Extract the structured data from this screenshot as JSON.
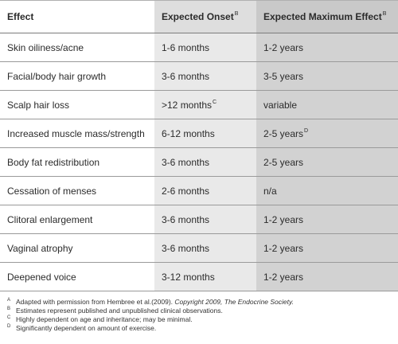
{
  "table": {
    "headers": [
      {
        "text": "Effect",
        "sup": ""
      },
      {
        "text": "Expected Onset",
        "sup": "B"
      },
      {
        "text": "Expected Maximum Effect",
        "sup": "B"
      }
    ],
    "rows": [
      {
        "effect": "Skin oiliness/acne",
        "onset": "1-6 months",
        "onset_sup": "",
        "max": "1-2 years",
        "max_sup": ""
      },
      {
        "effect": "Facial/body hair growth",
        "onset": "3-6 months",
        "onset_sup": "",
        "max": "3-5 years",
        "max_sup": ""
      },
      {
        "effect": "Scalp hair loss",
        "onset": ">12 months",
        "onset_sup": "C",
        "max": "variable",
        "max_sup": ""
      },
      {
        "effect": "Increased muscle mass/strength",
        "onset": "6-12 months",
        "onset_sup": "",
        "max": "2-5 years",
        "max_sup": "D"
      },
      {
        "effect": "Body fat redistribution",
        "onset": "3-6 months",
        "onset_sup": "",
        "max": "2-5 years",
        "max_sup": ""
      },
      {
        "effect": "Cessation of menses",
        "onset": "2-6 months",
        "onset_sup": "",
        "max": "n/a",
        "max_sup": ""
      },
      {
        "effect": "Clitoral enlargement",
        "onset": "3-6 months",
        "onset_sup": "",
        "max": "1-2 years",
        "max_sup": ""
      },
      {
        "effect": "Vaginal atrophy",
        "onset": "3-6 months",
        "onset_sup": "",
        "max": "1-2 years",
        "max_sup": ""
      },
      {
        "effect": "Deepened voice",
        "onset": "3-12 months",
        "onset_sup": "",
        "max": "1-2 years",
        "max_sup": ""
      }
    ]
  },
  "footnotes": [
    {
      "mark": "A",
      "text": "Adapted with permission from Hembree et al.(2009). ",
      "italic": "Copyright 2009, The Endocrine Society."
    },
    {
      "mark": "B",
      "text": "Estimates represent published and unpublished clinical observations.",
      "italic": ""
    },
    {
      "mark": "C",
      "text": "Highly dependent on age and inheritance; may be minimal.",
      "italic": ""
    },
    {
      "mark": "D",
      "text": "Significantly dependent on amount of exercise.",
      "italic": ""
    }
  ],
  "colors": {
    "onset_column_bg": "#e9e9e9",
    "max_column_bg": "#d2d2d2",
    "rule": "#9a9a9a"
  }
}
